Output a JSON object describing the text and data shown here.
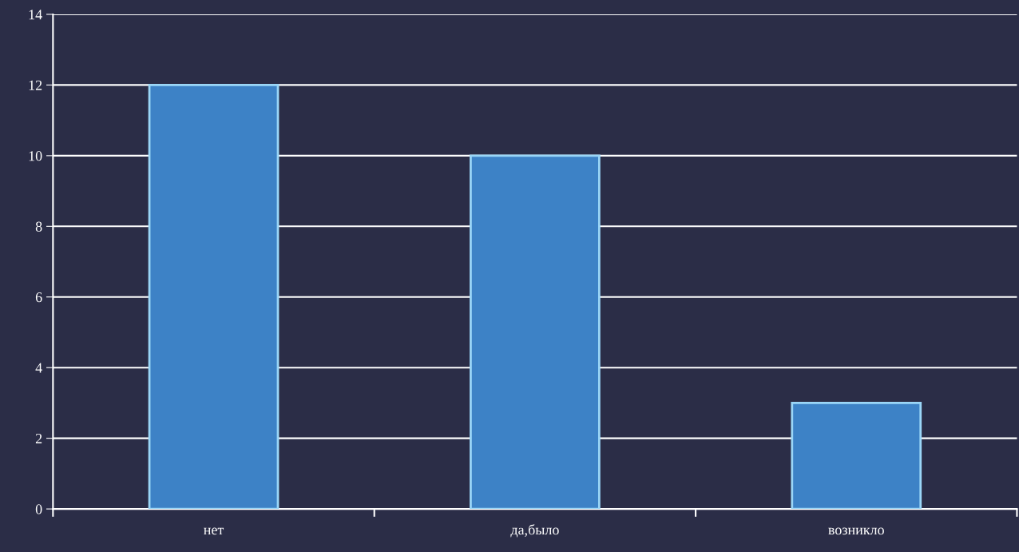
{
  "chart_data": {
    "type": "bar",
    "categories": [
      "нет",
      "да,было",
      "возникло"
    ],
    "values": [
      12,
      10,
      3
    ],
    "color": "#3d82c6",
    "ylim": [
      0,
      14
    ],
    "yticks": [
      0,
      2,
      4,
      6,
      8,
      10,
      12,
      14
    ],
    "grid": "y"
  }
}
